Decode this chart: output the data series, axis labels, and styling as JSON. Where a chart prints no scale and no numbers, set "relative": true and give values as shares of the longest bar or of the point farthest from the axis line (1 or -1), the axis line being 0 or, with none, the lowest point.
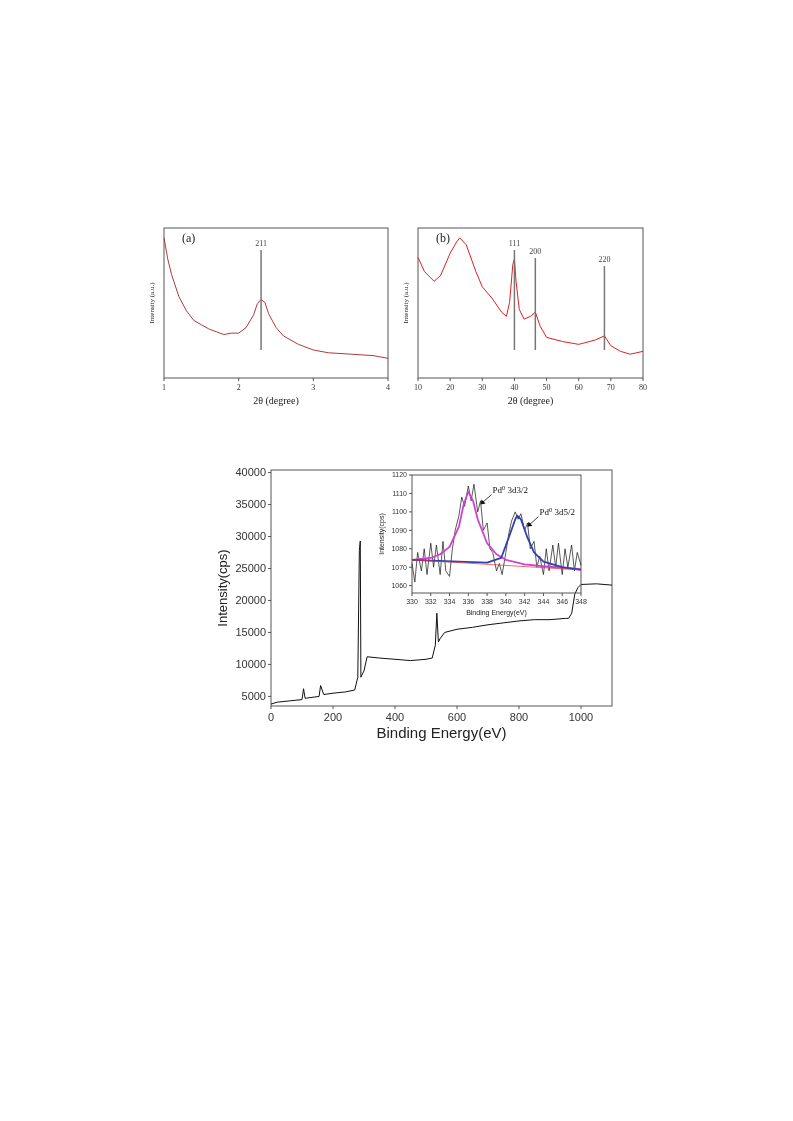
{
  "chart_data": [
    {
      "type": "line",
      "xlabel": "2θ (degree)",
      "ylabel": "Intensity (a.u.)",
      "relative": true,
      "xlim": [
        1,
        4
      ],
      "xticks": [
        1,
        2,
        3,
        4
      ],
      "annotations": [
        "(a)",
        "211"
      ],
      "ref_lines": [
        {
          "axis": "x",
          "value": 2.3,
          "color": "#777777"
        }
      ],
      "series": [
        {
          "color": "#b03a3a",
          "x": [
            1,
            1.05,
            1.1,
            1.2,
            1.3,
            1.4,
            1.5,
            1.6,
            1.7,
            1.8,
            1.9,
            2,
            2.1,
            2.2,
            2.25,
            2.3,
            2.35,
            2.4,
            2.5,
            2.6,
            2.7,
            2.8,
            3,
            3.2,
            3.5,
            3.8,
            4
          ],
          "values": [
            1,
            0.85,
            0.74,
            0.58,
            0.48,
            0.41,
            0.38,
            0.35,
            0.33,
            0.31,
            0.32,
            0.32,
            0.36,
            0.45,
            0.53,
            0.56,
            0.54,
            0.46,
            0.36,
            0.3,
            0.27,
            0.24,
            0.2,
            0.18,
            0.17,
            0.16,
            0.14
          ]
        }
      ]
    },
    {
      "type": "line",
      "xlabel": "2θ (degree)",
      "ylabel": "Intensity (a.u.)",
      "relative": true,
      "xlim": [
        10,
        80
      ],
      "xticks": [
        10,
        20,
        30,
        40,
        50,
        60,
        70,
        80
      ],
      "annotations": [
        "(b)",
        "111",
        "200",
        "220"
      ],
      "ref_lines": [
        {
          "axis": "x",
          "value": 40,
          "color": "#777777"
        },
        {
          "axis": "x",
          "value": 46.5,
          "color": "#777777"
        },
        {
          "axis": "x",
          "value": 68,
          "color": "#777777"
        }
      ],
      "series": [
        {
          "color": "#e02020",
          "x": [
            10,
            12,
            15,
            17,
            20,
            22,
            23,
            25,
            28,
            30,
            33,
            36,
            37.5,
            38.5,
            39.5,
            40,
            40.5,
            41.5,
            43,
            45,
            46.5,
            48,
            50,
            55,
            60,
            65,
            68,
            70,
            73,
            76,
            80
          ],
          "values": [
            0.86,
            0.76,
            0.69,
            0.73,
            0.89,
            0.97,
            1,
            0.95,
            0.76,
            0.65,
            0.57,
            0.47,
            0.44,
            0.54,
            0.81,
            0.85,
            0.69,
            0.49,
            0.42,
            0.44,
            0.47,
            0.37,
            0.29,
            0.26,
            0.24,
            0.27,
            0.3,
            0.23,
            0.19,
            0.17,
            0.19
          ]
        }
      ]
    },
    {
      "type": "line",
      "xlabel": "Binding Energy(eV)",
      "ylabel": "Intensity(cps)",
      "xlim": [
        0,
        1100
      ],
      "xticks": [
        0,
        200,
        400,
        600,
        800,
        1000
      ],
      "ylim": [
        3500,
        40400
      ],
      "yticks": [
        5000,
        10000,
        15000,
        20000,
        25000,
        30000,
        35000,
        40000
      ],
      "series": [
        {
          "color": "#111111",
          "x": [
            0,
            20,
            60,
            100,
            105,
            110,
            155,
            160,
            170,
            200,
            240,
            270,
            280,
            285,
            288,
            290,
            300,
            310,
            350,
            400,
            450,
            500,
            520,
            530,
            535,
            540,
            545,
            560,
            600,
            650,
            700,
            750,
            800,
            850,
            900,
            950,
            960,
            970,
            980,
            990,
            1000,
            1050,
            1100
          ],
          "values": [
            3800,
            4100,
            4300,
            4500,
            6200,
            4700,
            5000,
            6700,
            5300,
            5500,
            5700,
            6000,
            8000,
            27800,
            29300,
            8000,
            9000,
            11200,
            11000,
            10800,
            10600,
            10800,
            11000,
            13000,
            18000,
            13500,
            14000,
            15000,
            15500,
            15800,
            16200,
            16500,
            16800,
            17000,
            17000,
            17200,
            17200,
            18000,
            21000,
            22000,
            22500,
            22600,
            22400
          ]
        }
      ]
    },
    {
      "type": "line",
      "xlabel": "Binding Energy(eV)",
      "ylabel": "Intensity(cps)",
      "xlim": [
        330,
        348
      ],
      "xticks": [
        330,
        332,
        334,
        336,
        338,
        340,
        342,
        344,
        346,
        348
      ],
      "ylim": [
        1056,
        1120
      ],
      "yticks": [
        1060,
        1070,
        1080,
        1090,
        1100,
        1110,
        1120
      ],
      "annotations": [
        {
          "text": "Pd$^{0}$ 3d3/2",
          "x": 337.3,
          "y": 1104
        },
        {
          "text": "Pd$^{0}$ 3d5/2",
          "x": 342.3,
          "y": 1092
        }
      ],
      "series": [
        {
          "color": "#111111",
          "x": [
            330,
            330.3,
            330.6,
            331,
            331.3,
            331.6,
            332,
            332.3,
            332.6,
            333,
            333.3,
            333.6,
            334,
            334.3,
            334.6,
            335,
            335.3,
            335.6,
            336,
            336.3,
            336.6,
            337,
            337.3,
            337.6,
            338,
            338.3,
            338.6,
            339,
            339.3,
            339.6,
            340,
            340.3,
            340.6,
            341,
            341.3,
            341.6,
            342,
            342.3,
            342.6,
            343,
            343.3,
            343.6,
            344,
            344.3,
            344.6,
            345,
            345.3,
            345.6,
            346,
            346.3,
            346.6,
            347,
            347.3,
            347.6,
            348
          ],
          "values": [
            1072,
            1062,
            1078,
            1068,
            1080,
            1066,
            1083,
            1070,
            1082,
            1066,
            1084,
            1068,
            1065,
            1080,
            1090,
            1098,
            1108,
            1103,
            1114,
            1106,
            1115,
            1100,
            1106,
            1090,
            1094,
            1080,
            1078,
            1068,
            1072,
            1066,
            1078,
            1088,
            1095,
            1100,
            1096,
            1099,
            1090,
            1094,
            1080,
            1084,
            1070,
            1076,
            1066,
            1080,
            1068,
            1082,
            1070,
            1083,
            1066,
            1080,
            1070,
            1082,
            1068,
            1078,
            1071
          ]
        },
        {
          "color": "#d040d0",
          "x": [
            330,
            332,
            333,
            334,
            335,
            335.5,
            336,
            336.5,
            337,
            338,
            339,
            340,
            342,
            344,
            348
          ],
          "values": [
            1074,
            1075,
            1077,
            1081,
            1092,
            1104,
            1111,
            1106,
            1096,
            1083,
            1077,
            1074,
            1071.5,
            1070.5,
            1069
          ]
        },
        {
          "color": "#3040b0",
          "x": [
            330,
            335,
            338,
            339.5,
            340.3,
            341,
            341.2,
            341.6,
            342.3,
            343,
            344,
            346,
            348
          ],
          "values": [
            1074,
            1073,
            1072.5,
            1075,
            1086,
            1096,
            1098,
            1096,
            1086,
            1078,
            1073,
            1070,
            1068.5
          ]
        },
        {
          "color": "#e03030",
          "x": [
            330,
            348
          ],
          "values": [
            1074,
            1068.5
          ]
        }
      ]
    }
  ]
}
